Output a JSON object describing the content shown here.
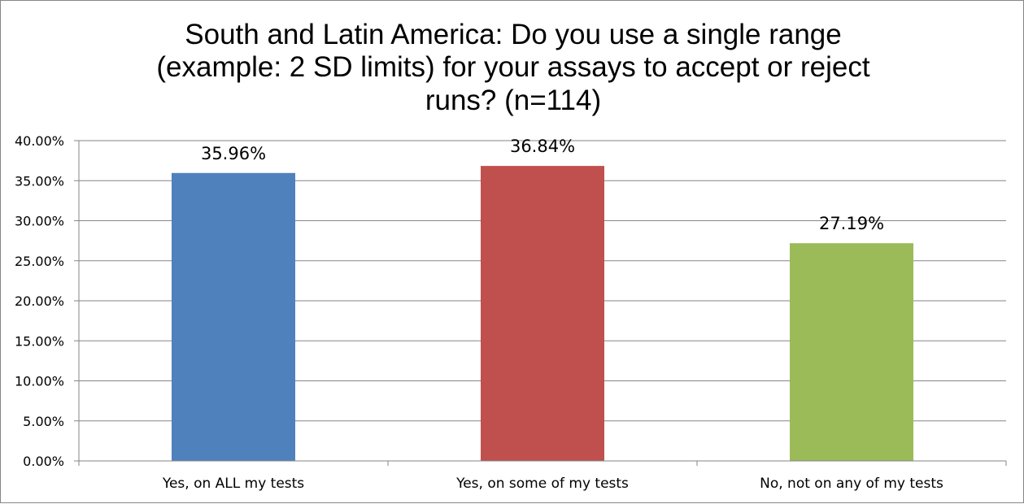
{
  "chart_data": {
    "type": "bar",
    "title_lines": [
      "South and Latin America: Do you use a single range",
      "(example: 2 SD limits) for your assays to accept or reject",
      "runs? (n=114)"
    ],
    "categories": [
      "Yes, on ALL my tests",
      "Yes, on some of my tests",
      "No, not on any of my tests"
    ],
    "values": [
      35.96,
      36.84,
      27.19
    ],
    "data_labels": [
      "35.96%",
      "36.84%",
      "27.19%"
    ],
    "bar_colors": [
      "#4F81BD",
      "#C0504D",
      "#9BBB59"
    ],
    "y_ticks": [
      "0.00%",
      "5.00%",
      "10.00%",
      "15.00%",
      "20.00%",
      "25.00%",
      "30.00%",
      "35.00%",
      "40.00%"
    ],
    "ylim": [
      0,
      40
    ],
    "grid": true,
    "legend": "none",
    "xlabel": "",
    "ylabel": ""
  }
}
